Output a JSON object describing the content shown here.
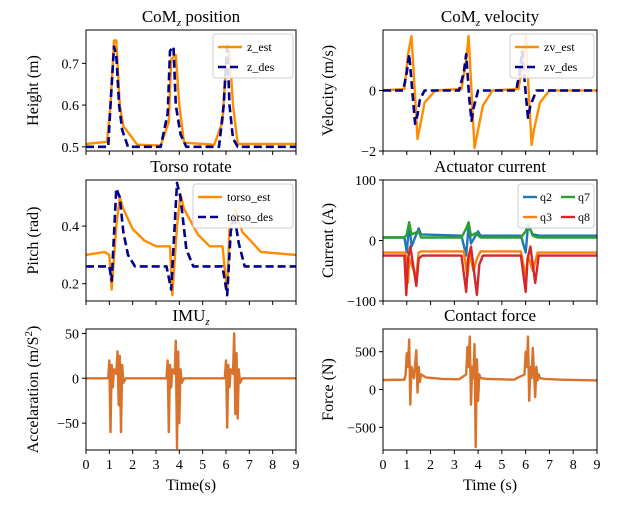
{
  "figure": {
    "caption": ""
  },
  "chart_data": [
    {
      "type": "line",
      "title": "CoM_z position",
      "title_main": "CoM",
      "title_sub": "z",
      "title_rest": " position",
      "xlabel": "",
      "ylabel": "Height (m)",
      "xlim": [
        0,
        9
      ],
      "ylim": [
        0.49,
        0.78
      ],
      "xticks": [
        0,
        1,
        2,
        3,
        4,
        5,
        6,
        7,
        8,
        9
      ],
      "xtick_labels_shown": false,
      "yticks": [
        0.5,
        0.6,
        0.7
      ],
      "legend": "top-right",
      "grid": false,
      "series": [
        {
          "name": "z_est",
          "color": "#ff8c00",
          "dash": "solid",
          "x": [
            0,
            0.9,
            1.05,
            1.2,
            1.3,
            1.45,
            1.6,
            2.2,
            3.2,
            3.55,
            3.65,
            3.85,
            4.0,
            4.2,
            5.5,
            5.85,
            6.0,
            6.15,
            6.3,
            6.5,
            9
          ],
          "y": [
            0.507,
            0.512,
            0.6,
            0.755,
            0.755,
            0.6,
            0.55,
            0.505,
            0.503,
            0.56,
            0.71,
            0.72,
            0.6,
            0.51,
            0.505,
            0.56,
            0.7,
            0.73,
            0.6,
            0.507,
            0.507
          ]
        },
        {
          "name": "z_des",
          "color": "#00008b",
          "dash": "dashed",
          "x": [
            0,
            0.95,
            1.05,
            1.2,
            1.3,
            1.42,
            1.55,
            1.8,
            3.2,
            3.5,
            3.6,
            3.75,
            3.85,
            4.05,
            4.3,
            5.7,
            5.9,
            6.05,
            6.15,
            6.3,
            6.5,
            9
          ],
          "y": [
            0.5,
            0.5,
            0.6,
            0.74,
            0.72,
            0.6,
            0.54,
            0.5,
            0.5,
            0.58,
            0.73,
            0.74,
            0.6,
            0.53,
            0.5,
            0.5,
            0.6,
            0.75,
            0.6,
            0.52,
            0.5,
            0.5
          ]
        }
      ]
    },
    {
      "type": "line",
      "title": "CoM_z velocity",
      "title_main": "CoM",
      "title_sub": "z",
      "title_rest": " velocity",
      "xlabel": "",
      "ylabel": "Velocity (m/s)",
      "xlim": [
        0,
        9
      ],
      "ylim": [
        -2.0,
        2.0
      ],
      "xticks": [
        0,
        1,
        2,
        3,
        4,
        5,
        6,
        7,
        8,
        9
      ],
      "xtick_labels_shown": false,
      "yticks": [
        -2,
        0
      ],
      "legend": "top-right",
      "grid": false,
      "series": [
        {
          "name": "zv_est",
          "color": "#ff8c00",
          "dash": "solid",
          "x": [
            0,
            0.9,
            1.05,
            1.2,
            1.35,
            1.45,
            1.55,
            1.75,
            2.2,
            3.3,
            3.5,
            3.6,
            3.7,
            3.85,
            3.95,
            4.2,
            4.6,
            5.7,
            5.9,
            6.0,
            6.1,
            6.25,
            6.35,
            6.6,
            7.0,
            9
          ],
          "y": [
            0,
            0.05,
            1.2,
            1.8,
            -0.2,
            -1.6,
            -1.2,
            -0.4,
            0,
            0.05,
            1.0,
            1.8,
            0.3,
            -1.9,
            -1.5,
            -0.5,
            0,
            0.05,
            1.0,
            1.8,
            0.4,
            -1.8,
            -1.3,
            -0.4,
            0,
            0
          ]
        },
        {
          "name": "zv_des",
          "color": "#00008b",
          "dash": "dashed",
          "x": [
            0,
            0.85,
            1.0,
            1.1,
            1.2,
            1.35,
            1.45,
            1.55,
            1.75,
            3.2,
            3.4,
            3.5,
            3.62,
            3.72,
            3.8,
            4.0,
            5.6,
            5.75,
            5.85,
            6.0,
            6.1,
            6.2,
            6.45,
            9
          ],
          "y": [
            0,
            0,
            0.6,
            1.2,
            0.3,
            -1.1,
            -0.8,
            -0.3,
            0,
            0,
            0.6,
            1.2,
            -0.2,
            -1.0,
            -0.6,
            0,
            0,
            0.6,
            1.3,
            -0.1,
            -0.9,
            -0.5,
            0,
            0
          ]
        }
      ]
    },
    {
      "type": "line",
      "title": "Torso rotate",
      "xlabel": "",
      "ylabel": "Pitch (rad)",
      "xlim": [
        0,
        9
      ],
      "ylim": [
        0.14,
        0.56
      ],
      "xticks": [
        0,
        1,
        2,
        3,
        4,
        5,
        6,
        7,
        8,
        9
      ],
      "xtick_labels_shown": false,
      "yticks": [
        0.2,
        0.4
      ],
      "legend": "top-right",
      "grid": false,
      "series": [
        {
          "name": "torso_est",
          "color": "#ff8c00",
          "dash": "solid",
          "x": [
            0,
            0.8,
            1.0,
            1.1,
            1.3,
            1.45,
            1.6,
            2.0,
            2.5,
            3.0,
            3.3,
            3.6,
            3.7,
            3.9,
            4.05,
            4.2,
            4.8,
            5.3,
            5.6,
            5.85,
            6.05,
            6.15,
            6.4,
            6.7,
            7.5,
            9
          ],
          "y": [
            0.3,
            0.31,
            0.3,
            0.18,
            0.4,
            0.5,
            0.46,
            0.39,
            0.35,
            0.33,
            0.33,
            0.33,
            0.16,
            0.4,
            0.51,
            0.46,
            0.37,
            0.33,
            0.33,
            0.33,
            0.17,
            0.4,
            0.46,
            0.38,
            0.31,
            0.3
          ]
        },
        {
          "name": "torso_des",
          "color": "#00008b",
          "dash": "dashed",
          "x": [
            0,
            1.0,
            1.1,
            1.3,
            1.45,
            1.6,
            1.8,
            2.1,
            3.45,
            3.65,
            3.9,
            4.05,
            4.3,
            4.6,
            5.85,
            6.05,
            6.2,
            6.35,
            6.55,
            6.8,
            9
          ],
          "y": [
            0.26,
            0.26,
            0.21,
            0.53,
            0.5,
            0.38,
            0.3,
            0.26,
            0.26,
            0.18,
            0.55,
            0.5,
            0.32,
            0.26,
            0.26,
            0.16,
            0.38,
            0.44,
            0.34,
            0.26,
            0.26
          ]
        }
      ]
    },
    {
      "type": "line",
      "title": "Actuator current",
      "xlabel": "",
      "ylabel": "Current (A)",
      "xlim": [
        0,
        9
      ],
      "ylim": [
        -100,
        100
      ],
      "xticks": [
        0,
        1,
        2,
        3,
        4,
        5,
        6,
        7,
        8,
        9
      ],
      "xtick_labels_shown": false,
      "yticks": [
        -100,
        0,
        100
      ],
      "legend": "top-right",
      "grid": false,
      "series": [
        {
          "name": "q2",
          "color": "#1f77b4",
          "dash": "solid",
          "x": [
            0,
            0.9,
            1.0,
            1.1,
            1.2,
            1.5,
            1.6,
            3.3,
            3.5,
            3.6,
            3.7,
            4.0,
            4.1,
            5.8,
            6.0,
            6.1,
            6.3,
            6.6,
            9
          ],
          "y": [
            5,
            5,
            -20,
            30,
            -10,
            20,
            10,
            8,
            -25,
            25,
            -5,
            15,
            8,
            8,
            -20,
            25,
            10,
            8,
            8
          ]
        },
        {
          "name": "q3",
          "color": "#ff7f0e",
          "dash": "solid",
          "x": [
            0,
            0.95,
            1.05,
            1.1,
            1.4,
            1.5,
            1.6,
            3.4,
            3.55,
            3.65,
            3.8,
            3.95,
            4.1,
            5.8,
            6.0,
            6.1,
            6.3,
            6.5,
            9
          ],
          "y": [
            -20,
            -20,
            -70,
            -30,
            -60,
            -20,
            -18,
            -18,
            -60,
            -20,
            -50,
            -30,
            -18,
            -18,
            -60,
            -25,
            -50,
            -20,
            -20
          ]
        },
        {
          "name": "q7",
          "color": "#2ca02c",
          "dash": "solid",
          "x": [
            0,
            0.9,
            1.0,
            1.1,
            1.2,
            1.5,
            1.6,
            3.3,
            3.5,
            3.6,
            3.7,
            3.9,
            4.1,
            5.8,
            6.0,
            6.1,
            6.3,
            6.5,
            9
          ],
          "y": [
            5,
            5,
            10,
            30,
            10,
            15,
            5,
            5,
            20,
            30,
            8,
            12,
            5,
            5,
            15,
            28,
            8,
            5,
            5
          ]
        },
        {
          "name": "q8",
          "color": "#d62728",
          "dash": "solid",
          "x": [
            0,
            0.9,
            0.98,
            1.05,
            1.15,
            1.4,
            1.5,
            1.65,
            3.3,
            3.5,
            3.58,
            3.7,
            3.95,
            4.05,
            4.2,
            5.8,
            6.0,
            6.08,
            6.2,
            6.4,
            6.55,
            9
          ],
          "y": [
            -25,
            -25,
            -90,
            -30,
            -10,
            -75,
            -30,
            -25,
            -25,
            -85,
            -30,
            -10,
            -90,
            -40,
            -25,
            -25,
            -85,
            -30,
            -10,
            -70,
            -25,
            -25
          ]
        }
      ]
    },
    {
      "type": "line",
      "title": "IMU_z",
      "title_main": "IMU",
      "title_sub": "z",
      "title_rest": "",
      "xlabel": "Time(s)",
      "ylabel": "Accelaration (m/S²)",
      "ylabel_main": "Accelaration (m/S",
      "ylabel_sup": "2",
      "ylabel_rest": ")",
      "xlim": [
        0,
        9
      ],
      "ylim": [
        -80,
        55
      ],
      "xticks": [
        0,
        1,
        2,
        3,
        4,
        5,
        6,
        7,
        8,
        9
      ],
      "xtick_labels_shown": true,
      "yticks": [
        -50,
        0,
        50
      ],
      "legend": "none",
      "grid": false,
      "series": [
        {
          "name": "",
          "color": "#d9722b",
          "dash": "solid",
          "x": [
            0,
            0.95,
            1.0,
            1.05,
            1.1,
            1.15,
            1.2,
            1.3,
            1.35,
            1.4,
            1.45,
            1.5,
            1.55,
            1.6,
            1.7,
            3.45,
            3.5,
            3.55,
            3.6,
            3.65,
            3.7,
            3.8,
            3.85,
            3.9,
            3.95,
            4.0,
            4.05,
            4.1,
            4.2,
            5.95,
            6.0,
            6.05,
            6.1,
            6.15,
            6.2,
            6.3,
            6.35,
            6.4,
            6.45,
            6.5,
            6.55,
            6.6,
            6.7,
            9
          ],
          "y": [
            0,
            0,
            20,
            -60,
            15,
            -10,
            10,
            5,
            30,
            -30,
            25,
            -60,
            15,
            -5,
            0,
            0,
            20,
            -60,
            15,
            -10,
            10,
            5,
            42,
            -78,
            30,
            -50,
            10,
            -5,
            0,
            0,
            20,
            -55,
            15,
            -10,
            10,
            5,
            50,
            -40,
            28,
            -45,
            10,
            -5,
            0,
            0
          ]
        }
      ]
    },
    {
      "type": "line",
      "title": "Contact force",
      "xlabel": "Time (s)",
      "ylabel": "Force (N)",
      "xlim": [
        0,
        9
      ],
      "ylim": [
        -800,
        800
      ],
      "xticks": [
        0,
        1,
        2,
        3,
        4,
        5,
        6,
        7,
        8,
        9
      ],
      "xtick_labels_shown": true,
      "yticks": [
        -500,
        0,
        500
      ],
      "legend": "none",
      "grid": false,
      "series": [
        {
          "name": "",
          "color": "#d9722b",
          "dash": "solid",
          "x": [
            0,
            0.9,
            0.95,
            1.0,
            1.05,
            1.1,
            1.15,
            1.2,
            1.3,
            1.4,
            1.45,
            1.5,
            1.55,
            1.6,
            1.8,
            2.5,
            3.2,
            3.5,
            3.55,
            3.6,
            3.65,
            3.7,
            3.75,
            3.8,
            3.85,
            3.9,
            3.95,
            4.0,
            4.05,
            4.1,
            4.4,
            5.5,
            5.95,
            6.0,
            6.05,
            6.1,
            6.15,
            6.2,
            6.25,
            6.3,
            6.4,
            6.45,
            6.5,
            6.55,
            6.6,
            6.8,
            7.5,
            9
          ],
          "y": [
            125,
            130,
            200,
            480,
            300,
            660,
            -200,
            300,
            150,
            520,
            -40,
            300,
            100,
            200,
            160,
            140,
            135,
            200,
            560,
            300,
            700,
            -200,
            300,
            150,
            600,
            -760,
            400,
            -150,
            200,
            150,
            140,
            130,
            200,
            500,
            300,
            700,
            -150,
            300,
            150,
            550,
            -100,
            300,
            120,
            200,
            150,
            140,
            130,
            120
          ]
        }
      ]
    }
  ]
}
